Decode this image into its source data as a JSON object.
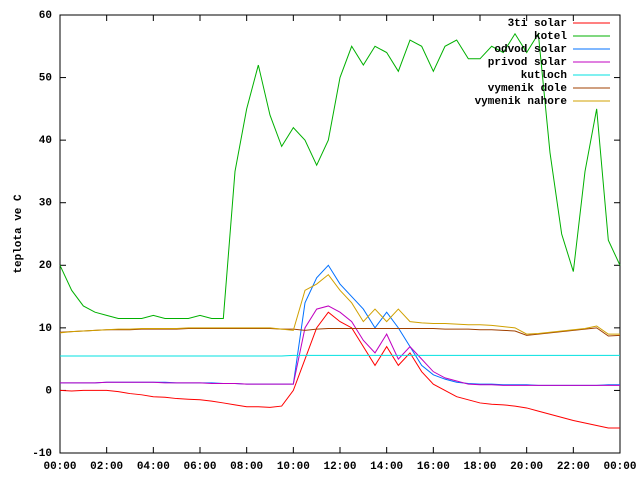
{
  "chart_data": {
    "type": "line",
    "ylabel": "teplota ve C",
    "x": [
      0,
      0.5,
      1,
      1.5,
      2,
      2.5,
      3,
      3.5,
      4,
      4.5,
      5,
      5.5,
      6,
      6.5,
      7,
      7.5,
      8,
      8.5,
      9,
      9.5,
      10,
      10.5,
      11,
      11.5,
      12,
      12.5,
      13,
      13.5,
      14,
      14.5,
      15,
      15.5,
      16,
      16.5,
      17,
      17.5,
      18,
      18.5,
      19,
      19.5,
      20,
      20.5,
      21,
      21.5,
      22,
      22.5,
      23,
      23.5,
      24
    ],
    "series": [
      {
        "name": "3ti solar",
        "color": "#ff0000",
        "values": [
          0,
          -0.1,
          0,
          0,
          0,
          -0.2,
          -0.5,
          -0.7,
          -1,
          -1.1,
          -1.3,
          -1.4,
          -1.5,
          -1.7,
          -2,
          -2.3,
          -2.6,
          -2.6,
          -2.7,
          -2.5,
          0,
          5,
          10,
          12.5,
          11,
          10,
          7,
          4,
          7,
          4,
          6,
          3,
          1,
          0,
          -1,
          -1.5,
          -2,
          -2.2,
          -2.3,
          -2.5,
          -2.8,
          -3.3,
          -3.8,
          -4.3,
          -4.8,
          -5.2,
          -5.6,
          -6,
          -6
        ]
      },
      {
        "name": "kotel",
        "color": "#00b000",
        "values": [
          20,
          16,
          13.5,
          12.5,
          12,
          11.5,
          11.5,
          11.5,
          12,
          11.5,
          11.5,
          11.5,
          12,
          11.5,
          11.5,
          35,
          45,
          52,
          44,
          39,
          42,
          40,
          36,
          40,
          50,
          55,
          52,
          55,
          54,
          51,
          56,
          55,
          51,
          55,
          56,
          53,
          53,
          55,
          54,
          57,
          54,
          57,
          38,
          25,
          19,
          35,
          45,
          24,
          20
        ]
      },
      {
        "name": "odvod solar",
        "color": "#0070ff",
        "values": [
          1.2,
          1.2,
          1.2,
          1.2,
          1.3,
          1.3,
          1.3,
          1.3,
          1.3,
          1.3,
          1.2,
          1.2,
          1.2,
          1.2,
          1.1,
          1.1,
          1.0,
          1.0,
          1.0,
          1.0,
          1.0,
          14,
          18,
          20,
          17,
          15,
          13,
          10,
          12.5,
          10,
          7,
          4,
          2.5,
          1.8,
          1.3,
          1.1,
          1.0,
          1.0,
          0.9,
          0.9,
          0.9,
          0.8,
          0.8,
          0.8,
          0.8,
          0.8,
          0.8,
          0.9,
          0.9
        ]
      },
      {
        "name": "privod solar",
        "color": "#c000c0",
        "values": [
          1.2,
          1.2,
          1.2,
          1.2,
          1.3,
          1.3,
          1.3,
          1.3,
          1.3,
          1.2,
          1.2,
          1.2,
          1.2,
          1.1,
          1.1,
          1.1,
          1.0,
          1.0,
          1.0,
          1.0,
          1.0,
          10,
          13,
          13.5,
          12.5,
          11,
          8,
          6,
          9,
          5,
          7,
          5,
          3,
          2,
          1.5,
          1,
          0.9,
          0.9,
          0.8,
          0.8,
          0.8,
          0.8,
          0.8,
          0.8,
          0.8,
          0.8,
          0.8,
          0.8,
          0.8
        ]
      },
      {
        "name": "kutloch",
        "color": "#00e0e0",
        "values": [
          5.5,
          5.5,
          5.5,
          5.5,
          5.5,
          5.5,
          5.5,
          5.5,
          5.5,
          5.5,
          5.5,
          5.5,
          5.5,
          5.5,
          5.5,
          5.5,
          5.5,
          5.5,
          5.5,
          5.5,
          5.6,
          5.6,
          5.6,
          5.6,
          5.6,
          5.6,
          5.6,
          5.6,
          5.6,
          5.6,
          5.6,
          5.6,
          5.6,
          5.6,
          5.6,
          5.6,
          5.6,
          5.6,
          5.6,
          5.6,
          5.6,
          5.6,
          5.6,
          5.6,
          5.6,
          5.6,
          5.6,
          5.6,
          5.6
        ]
      },
      {
        "name": "vymenik dole",
        "color": "#a04000",
        "values": [
          9.3,
          9.4,
          9.5,
          9.6,
          9.7,
          9.7,
          9.7,
          9.8,
          9.8,
          9.8,
          9.8,
          9.9,
          9.9,
          9.9,
          9.9,
          9.9,
          9.9,
          9.9,
          9.9,
          9.8,
          9.8,
          9.6,
          9.8,
          9.9,
          9.9,
          9.9,
          9.9,
          9.9,
          9.9,
          9.9,
          9.9,
          9.9,
          9.9,
          9.8,
          9.8,
          9.8,
          9.7,
          9.7,
          9.6,
          9.5,
          8.8,
          9.0,
          9.2,
          9.4,
          9.6,
          9.8,
          10.0,
          8.7,
          8.8
        ]
      },
      {
        "name": "vymenik nahore",
        "color": "#d0a000",
        "values": [
          9.2,
          9.4,
          9.5,
          9.6,
          9.7,
          9.8,
          9.8,
          9.9,
          9.9,
          9.9,
          9.9,
          10,
          10,
          10,
          10,
          10,
          10,
          10,
          10,
          9.8,
          9.6,
          16,
          17,
          18.5,
          16,
          14,
          11,
          13,
          11,
          13,
          11,
          10.8,
          10.7,
          10.7,
          10.6,
          10.5,
          10.5,
          10.4,
          10.2,
          10,
          9,
          9.1,
          9.3,
          9.5,
          9.7,
          9.9,
          10.3,
          9,
          9
        ]
      }
    ],
    "xlim": [
      0,
      24
    ],
    "xticks": [
      {
        "value": 0,
        "label": "00:00"
      },
      {
        "value": 2,
        "label": "02:00"
      },
      {
        "value": 4,
        "label": "04:00"
      },
      {
        "value": 6,
        "label": "06:00"
      },
      {
        "value": 8,
        "label": "08:00"
      },
      {
        "value": 10,
        "label": "10:00"
      },
      {
        "value": 12,
        "label": "12:00"
      },
      {
        "value": 14,
        "label": "14:00"
      },
      {
        "value": 16,
        "label": "16:00"
      },
      {
        "value": 18,
        "label": "18:00"
      },
      {
        "value": 20,
        "label": "20:00"
      },
      {
        "value": 22,
        "label": "22:00"
      },
      {
        "value": 24,
        "label": "00:00"
      }
    ],
    "ylim": [
      -10,
      60
    ],
    "yticks": [
      -10,
      0,
      10,
      20,
      30,
      40,
      50,
      60
    ],
    "grid": false,
    "legend": "top-right"
  }
}
